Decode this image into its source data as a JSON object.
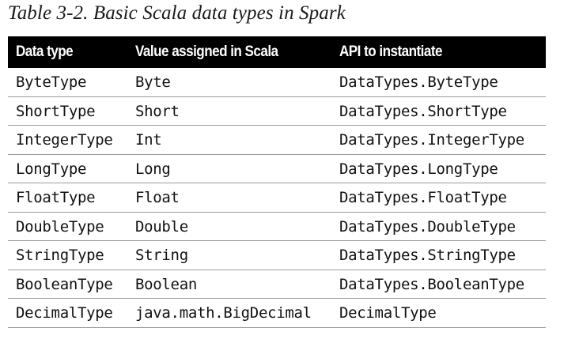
{
  "caption": "Table 3-2. Basic Scala data types in Spark",
  "table": {
    "headers": [
      "Data type",
      "Value assigned in Scala",
      "API to instantiate"
    ],
    "rows": [
      [
        "ByteType",
        "Byte",
        "DataTypes.ByteType"
      ],
      [
        "ShortType",
        "Short",
        "DataTypes.ShortType"
      ],
      [
        "IntegerType",
        "Int",
        "DataTypes.IntegerType"
      ],
      [
        "LongType",
        "Long",
        "DataTypes.LongType"
      ],
      [
        "FloatType",
        "Float",
        "DataTypes.FloatType"
      ],
      [
        "DoubleType",
        "Double",
        "DataTypes.DoubleType"
      ],
      [
        "StringType",
        "String",
        "DataTypes.StringType"
      ],
      [
        "BooleanType",
        "Boolean",
        "DataTypes.BooleanType"
      ],
      [
        "DecimalType",
        "java.math.BigDecimal",
        "DecimalType"
      ]
    ]
  }
}
